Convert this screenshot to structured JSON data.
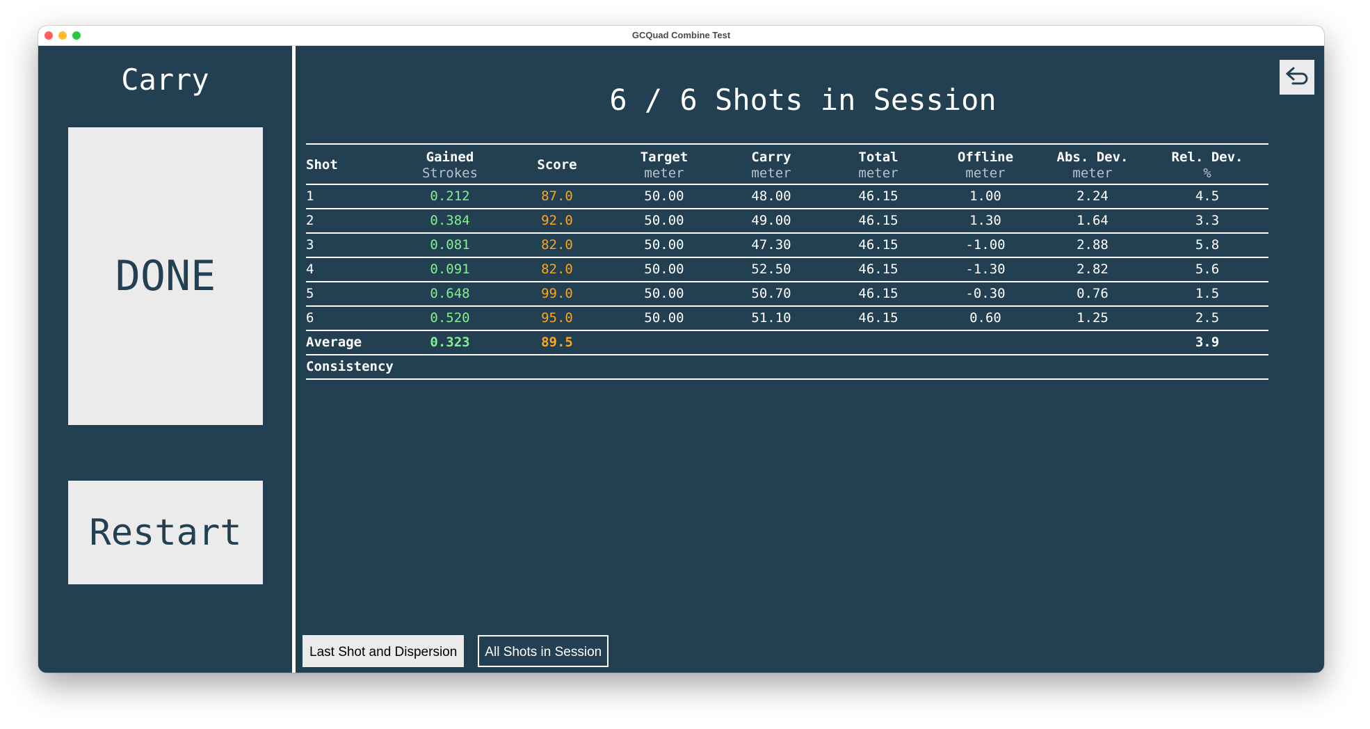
{
  "window": {
    "title": "GCQuad Combine Test"
  },
  "sidebar": {
    "title": "Carry",
    "done_label": "DONE",
    "restart_label": "Restart"
  },
  "main": {
    "title": "6 / 6 Shots in Session"
  },
  "table": {
    "headers": [
      {
        "label": "Shot",
        "unit": ""
      },
      {
        "label": "Gained",
        "unit": "Strokes"
      },
      {
        "label": "Score",
        "unit": ""
      },
      {
        "label": "Target",
        "unit": "meter"
      },
      {
        "label": "Carry",
        "unit": "meter"
      },
      {
        "label": "Total",
        "unit": "meter"
      },
      {
        "label": "Offline",
        "unit": "meter"
      },
      {
        "label": "Abs. Dev.",
        "unit": "meter"
      },
      {
        "label": "Rel. Dev.",
        "unit": "%"
      }
    ],
    "rows": [
      [
        "1",
        "0.212",
        "87.0",
        "50.00",
        "48.00",
        "46.15",
        "1.00",
        "2.24",
        "4.5"
      ],
      [
        "2",
        "0.384",
        "92.0",
        "50.00",
        "49.00",
        "46.15",
        "1.30",
        "1.64",
        "3.3"
      ],
      [
        "3",
        "0.081",
        "82.0",
        "50.00",
        "47.30",
        "46.15",
        "-1.00",
        "2.88",
        "5.8"
      ],
      [
        "4",
        "0.091",
        "82.0",
        "50.00",
        "52.50",
        "46.15",
        "-1.30",
        "2.82",
        "5.6"
      ],
      [
        "5",
        "0.648",
        "99.0",
        "50.00",
        "50.70",
        "46.15",
        "-0.30",
        "0.76",
        "1.5"
      ],
      [
        "6",
        "0.520",
        "95.0",
        "50.00",
        "51.10",
        "46.15",
        "0.60",
        "1.25",
        "2.5"
      ]
    ],
    "average": [
      "Average",
      "0.323",
      "89.5",
      "",
      "",
      "",
      "",
      "",
      "3.9"
    ],
    "consistency": [
      "Consistency",
      "",
      "",
      "",
      "",
      "",
      "",
      "",
      ""
    ]
  },
  "tabs": {
    "last_shot": "Last Shot and Dispersion",
    "all_shots": "All Shots in Session"
  },
  "colors": {
    "background": "#233f52",
    "button": "#ebebeb",
    "gained": "#84f08f",
    "score": "#ffa51a"
  },
  "icons": {
    "back": "undo-arrow-icon"
  }
}
